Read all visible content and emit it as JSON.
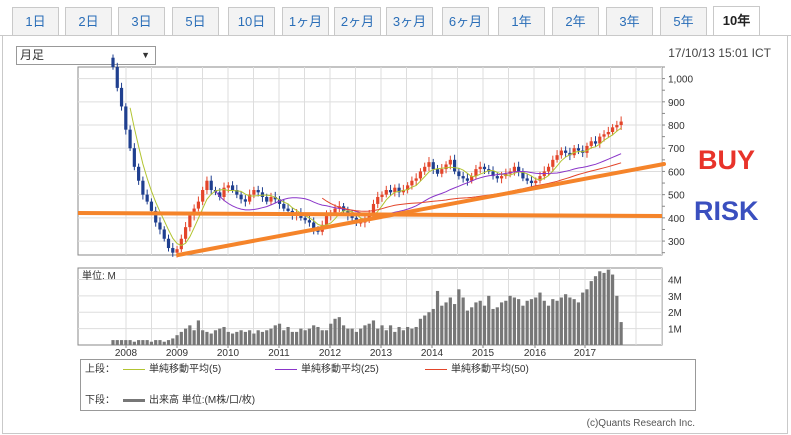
{
  "tabs": [
    {
      "label": "1日",
      "active": false
    },
    {
      "label": "2日",
      "active": false
    },
    {
      "label": "3日",
      "active": false
    },
    {
      "label": "5日",
      "active": false
    },
    {
      "label": "10日",
      "active": false
    },
    {
      "label": "1ヶ月",
      "active": false
    },
    {
      "label": "2ヶ月",
      "active": false
    },
    {
      "label": "3ヶ月",
      "active": false
    },
    {
      "label": "6ヶ月",
      "active": false
    },
    {
      "label": "1年",
      "active": false
    },
    {
      "label": "2年",
      "active": false
    },
    {
      "label": "3年",
      "active": false
    },
    {
      "label": "5年",
      "active": false
    },
    {
      "label": "10年",
      "active": true
    }
  ],
  "period_select": {
    "value": "月足"
  },
  "timestamp": "17/10/13 15:01 ICT",
  "volume_label": "単位: M",
  "annotations": {
    "buy": "BUY",
    "risk": "RISK",
    "buy_color": "#e8332a",
    "risk_color": "#3a4fbf",
    "line_color": "#f5842a"
  },
  "legend": {
    "upper_label": "上段：",
    "lower_label": "下段：",
    "ma5": "単純移動平均(5)",
    "ma25": "単純移動平均(25)",
    "ma50": "単純移動平均(50)",
    "volume": "出来高 単位:(M株/口/枚)",
    "ma5_color": "#b2c431",
    "ma25_color": "#8a35c9",
    "ma50_color": "#e3452a",
    "volume_color": "#777777"
  },
  "credit": "(c)Quants Research Inc.",
  "chart_data": [
    {
      "type": "candlestick",
      "x_tick_labels": [
        "2008",
        "2009",
        "2010",
        "2011",
        "2012",
        "2013",
        "2014",
        "2015",
        "2016",
        "2017"
      ],
      "y_tick_labels": [
        "300",
        "400",
        "500",
        "600",
        "700",
        "800",
        "900",
        "1,000"
      ],
      "ylim": [
        240,
        1050
      ],
      "up_color": "#e3452a",
      "down_color": "#1f3f8f",
      "months_start": "2008-01",
      "grid": true,
      "close": [
        1050,
        960,
        880,
        780,
        700,
        620,
        560,
        500,
        470,
        430,
        380,
        350,
        310,
        270,
        250,
        265,
        310,
        360,
        410,
        440,
        470,
        520,
        560,
        520,
        510,
        490,
        530,
        540,
        520,
        500,
        480,
        470,
        500,
        520,
        510,
        490,
        470,
        490,
        480,
        460,
        440,
        430,
        410,
        420,
        400,
        390,
        380,
        350,
        340,
        370,
        410,
        420,
        440,
        450,
        430,
        410,
        400,
        380,
        380,
        390,
        420,
        460,
        490,
        500,
        520,
        510,
        530,
        510,
        520,
        540,
        560,
        570,
        600,
        620,
        640,
        610,
        590,
        610,
        630,
        650,
        600,
        580,
        570,
        560,
        580,
        610,
        620,
        610,
        600,
        580,
        570,
        580,
        590,
        600,
        620,
        600,
        570,
        560,
        550,
        560,
        580,
        600,
        620,
        650,
        670,
        690,
        680,
        670,
        700,
        690,
        680,
        710,
        730,
        720,
        750,
        760,
        770,
        790,
        800,
        815
      ]
    },
    {
      "type": "bar",
      "title": "単位: M",
      "y_tick_labels": [
        "1M",
        "2M",
        "3M",
        "4M"
      ],
      "ylim": [
        0,
        4.7
      ],
      "values": [
        0.3,
        0.3,
        0.3,
        0.3,
        0.3,
        0.2,
        0.3,
        0.3,
        0.3,
        0.2,
        0.3,
        0.3,
        0.2,
        0.3,
        0.4,
        0.6,
        0.8,
        1.0,
        1.2,
        0.9,
        1.5,
        0.9,
        0.8,
        0.7,
        0.9,
        1.0,
        1.1,
        0.8,
        0.7,
        0.8,
        0.9,
        0.8,
        0.9,
        0.7,
        0.9,
        0.8,
        0.9,
        1.0,
        1.2,
        1.3,
        0.9,
        1.1,
        0.8,
        0.8,
        1.0,
        0.9,
        1.0,
        1.2,
        1.1,
        0.9,
        0.9,
        1.3,
        1.6,
        1.7,
        1.2,
        1.0,
        1.0,
        0.8,
        1.0,
        1.2,
        1.3,
        1.5,
        1.0,
        1.2,
        0.9,
        1.2,
        0.8,
        1.1,
        0.9,
        1.1,
        1.0,
        1.1,
        1.6,
        1.8,
        2.0,
        2.2,
        3.3,
        2.4,
        2.6,
        2.9,
        2.5,
        3.4,
        2.9,
        2.1,
        2.3,
        2.6,
        2.7,
        2.4,
        3.0,
        2.2,
        2.3,
        2.6,
        2.7,
        3.0,
        2.9,
        2.8,
        2.4,
        2.7,
        2.8,
        2.9,
        3.2,
        2.7,
        2.4,
        2.8,
        2.7,
        2.9,
        3.1,
        2.9,
        2.8,
        2.6,
        3.2,
        3.4,
        3.9,
        4.2,
        4.5,
        4.4,
        4.6,
        4.3,
        3.0,
        1.4
      ]
    }
  ]
}
